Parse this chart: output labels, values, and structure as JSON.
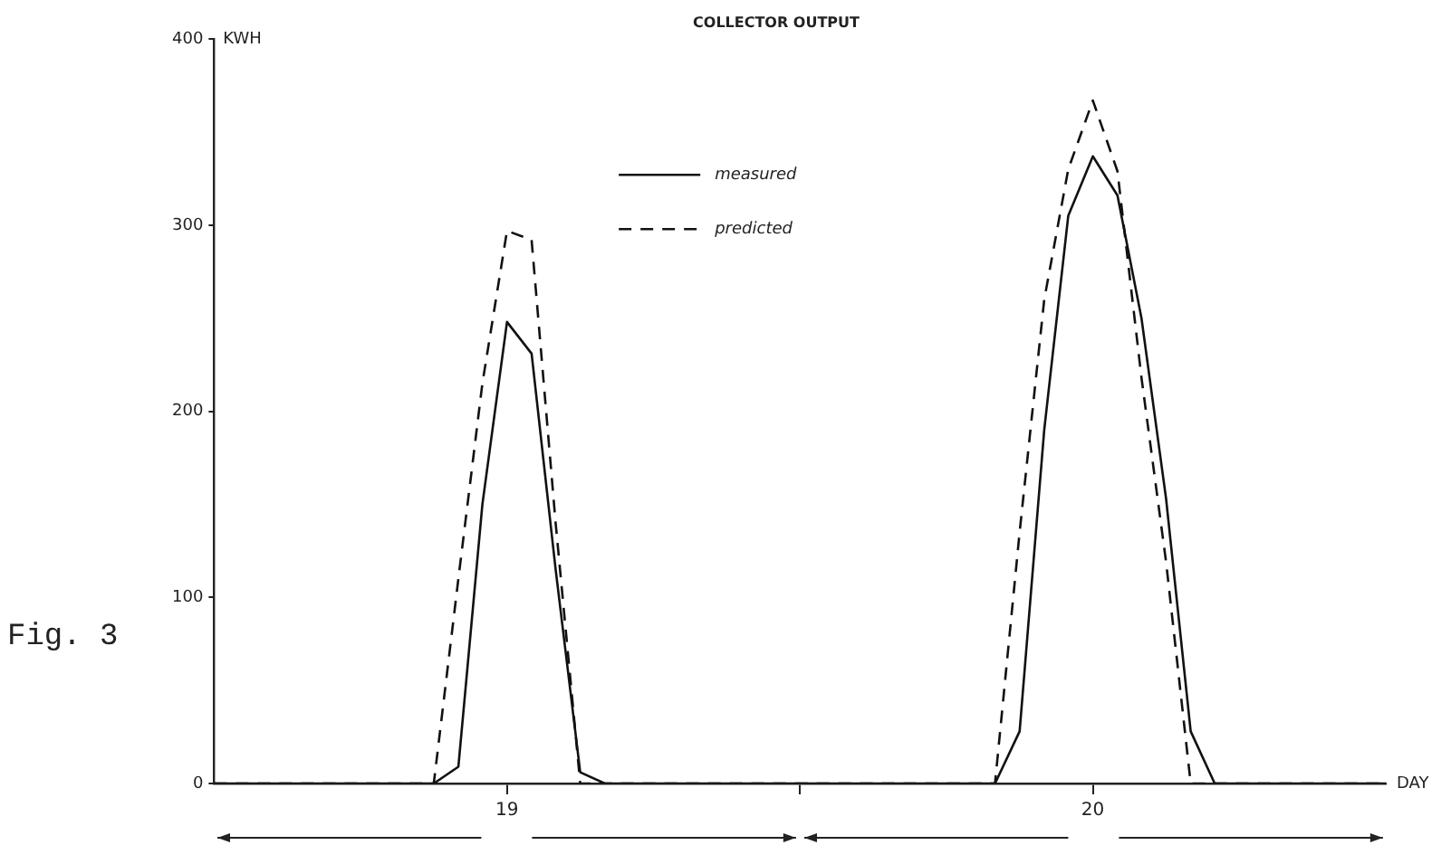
{
  "chart_data": {
    "type": "line",
    "title": "COLLECTOR OUTPUT",
    "xlabel": "DAY",
    "ylabel": "KWH",
    "annotations": [
      "Fig. 3"
    ],
    "series": [
      {
        "name": "measured",
        "color": "#111111",
        "line_style": "solid",
        "x": [
          18.5,
          18.875,
          18.917,
          18.958,
          19,
          19.042,
          19.083,
          19.125,
          19.167,
          19.833,
          19.875,
          19.917,
          19.958,
          20,
          20.042,
          20.083,
          20.125,
          20.167,
          20.208,
          20.5
        ],
        "values": [
          0,
          0,
          9,
          150,
          248,
          231,
          115,
          6,
          0,
          0,
          28,
          190,
          305,
          337,
          316,
          250,
          153,
          28,
          0,
          0
        ]
      },
      {
        "name": "predicted",
        "color": "#111111",
        "line_style": "dashed",
        "x": [
          18.5,
          18.875,
          18.917,
          18.958,
          19,
          19.042,
          19.083,
          19.125,
          19.833,
          19.875,
          19.917,
          19.958,
          20,
          20.042,
          20.083,
          20.125,
          20.167,
          20.5
        ],
        "values": [
          0,
          0,
          110,
          215,
          297,
          292,
          140,
          0,
          0,
          135,
          260,
          330,
          367,
          329,
          218,
          119,
          0,
          0
        ]
      }
    ],
    "xlim": [
      18.5,
      20.5
    ],
    "xticks": [
      19,
      {
        "value": 19.5,
        "label": null
      },
      20
    ],
    "ylim": [
      0,
      400
    ],
    "yticks": [
      0,
      100,
      200,
      300,
      400
    ],
    "grid": false,
    "legend": "top",
    "marker": "none"
  }
}
